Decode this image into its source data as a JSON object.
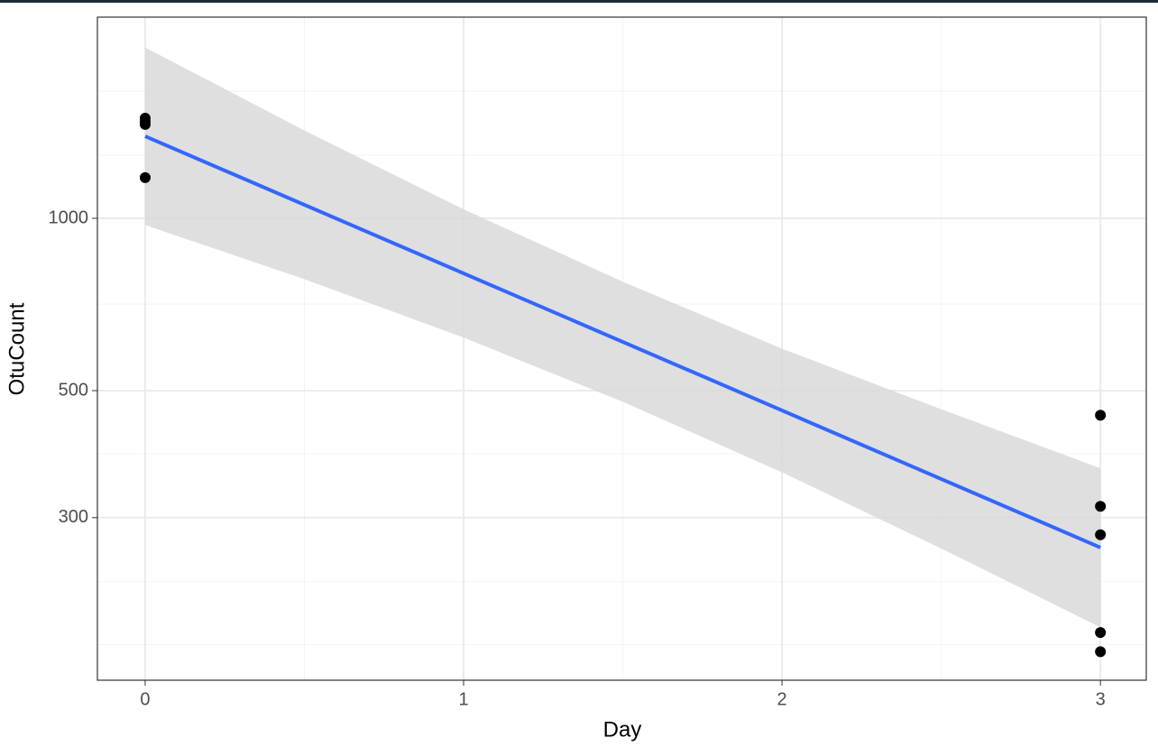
{
  "chart_data": {
    "type": "scatter",
    "x_label": "Day",
    "y_label": "OtuCount",
    "log_y": true,
    "grid": true,
    "xlim": [
      -0.15,
      3.144
    ],
    "ylim": [
      156,
      2246
    ],
    "xticks": [
      0,
      1,
      2,
      3
    ],
    "yticks": [
      300,
      500,
      1000
    ],
    "minor_xticks": [
      0.5,
      1.5,
      2.5
    ],
    "minor_yticks": [
      180,
      232,
      388,
      708,
      1289,
      1667
    ],
    "point_color": "#000000",
    "series": [
      {
        "x": [
          0,
          0,
          0,
          0,
          3,
          3,
          3,
          3,
          3
        ],
        "values": [
          1496,
          1475,
          1459,
          1178,
          453,
          314,
          280,
          189,
          175
        ]
      }
    ],
    "fit": {
      "color": "#3366ff",
      "x": [
        0,
        3
      ],
      "values": [
        1391,
        266
      ]
    },
    "band": {
      "color": "#d9d9d9",
      "x": [
        0,
        0.5,
        1,
        1.5,
        2,
        2.5,
        3
      ],
      "lower": [
        973,
        783,
        619,
        478,
        360,
        265,
        193
      ],
      "upper": [
        1988,
        1424,
        1037,
        775,
        592,
        464,
        366
      ]
    }
  }
}
